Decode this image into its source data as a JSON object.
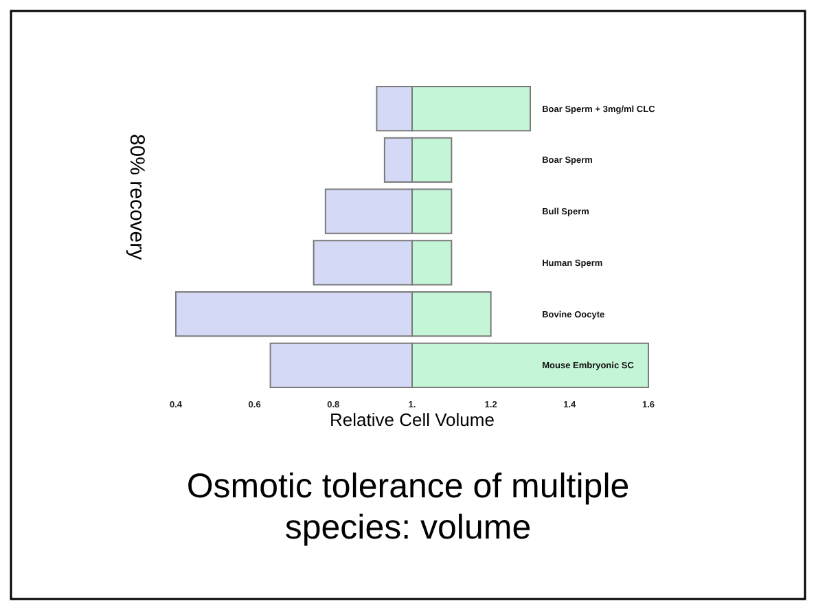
{
  "chart_data": {
    "type": "bar",
    "orientation": "horizontal",
    "title": "Osmotic tolerance of multiple species: volume",
    "xlabel": "Relative  Cell Volume",
    "ylabel": "80% recovery",
    "categories": [
      "Boar Sperm + 3mg/ml CLC",
      "Boar Sperm",
      "Bull Sperm",
      "Human Sperm",
      "Bovine Oocyte",
      "Mouse Embryonic SC"
    ],
    "series": [
      {
        "color": "#d4d9f5",
        "base": [
          0.91,
          0.93,
          0.78,
          0.75,
          0.4,
          0.64
        ],
        "values": [
          0.09,
          0.07,
          0.22,
          0.25,
          0.6,
          0.36
        ]
      },
      {
        "color": "#c4f5d6",
        "base": [
          1,
          1,
          1,
          1,
          1,
          1
        ],
        "values": [
          0.3,
          0.1,
          0.1,
          0.1,
          0.2,
          0.6
        ]
      }
    ],
    "xlim": [
      0.4,
      1.6
    ],
    "xticks": [
      0.4,
      0.6,
      0.8,
      {
        "value": 1,
        "label": "1."
      },
      1.2,
      1.4,
      1.6
    ]
  }
}
